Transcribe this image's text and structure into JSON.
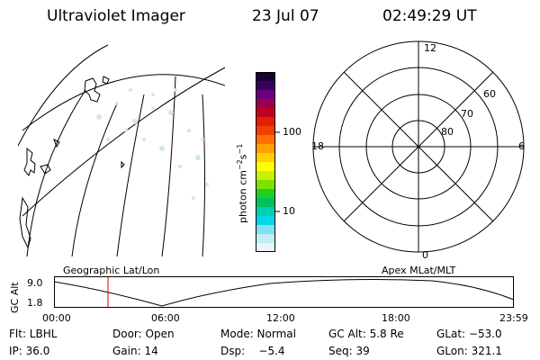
{
  "header": {
    "instrument": "Ultraviolet Imager",
    "date": "23 Jul 07",
    "time": "02:49:29 UT"
  },
  "colorbar": {
    "unit_label": "photon cm",
    "unit_exp1": "−2",
    "unit_s": "s",
    "unit_exp2": "−1",
    "ticks": [
      "100",
      "10"
    ],
    "colors": [
      "#1a0030",
      "#3a0060",
      "#6a0080",
      "#9a0050",
      "#c00020",
      "#e02000",
      "#f04000",
      "#ff7000",
      "#ffa000",
      "#ffd000",
      "#ffff00",
      "#c8f000",
      "#80e000",
      "#20d020",
      "#00c060",
      "#00d0b0",
      "#00d8e8",
      "#80e0f0",
      "#c0ecf4",
      "#e8f6f8"
    ]
  },
  "panels": {
    "left_caption": "Geographic Lat/Lon",
    "right_caption": "Apex MLat/MLT"
  },
  "polar": {
    "top": "12",
    "left": "18",
    "right": "6",
    "bottom": "0",
    "lat_labels": [
      "60",
      "70",
      "80"
    ]
  },
  "altitude_plot": {
    "ylabel": "GC Alt",
    "yticks": [
      "9.0",
      "1.8"
    ],
    "xticks": [
      "00:00",
      "06:00",
      "12:00",
      "18:00",
      "23:59"
    ],
    "marker_time": "02:49"
  },
  "info": {
    "flt": "Flt: LBHL",
    "door": "Door: Open",
    "mode": "Mode: Normal",
    "gcalt": "GC Alt: 5.8 Re",
    "glat": "GLat: −53.0",
    "ip": "IP: 36.0",
    "gain": "Gain: 14",
    "dsp": "Dsp:    −5.4",
    "seq": "Seq: 39",
    "glon": "GLon: 321.1"
  }
}
